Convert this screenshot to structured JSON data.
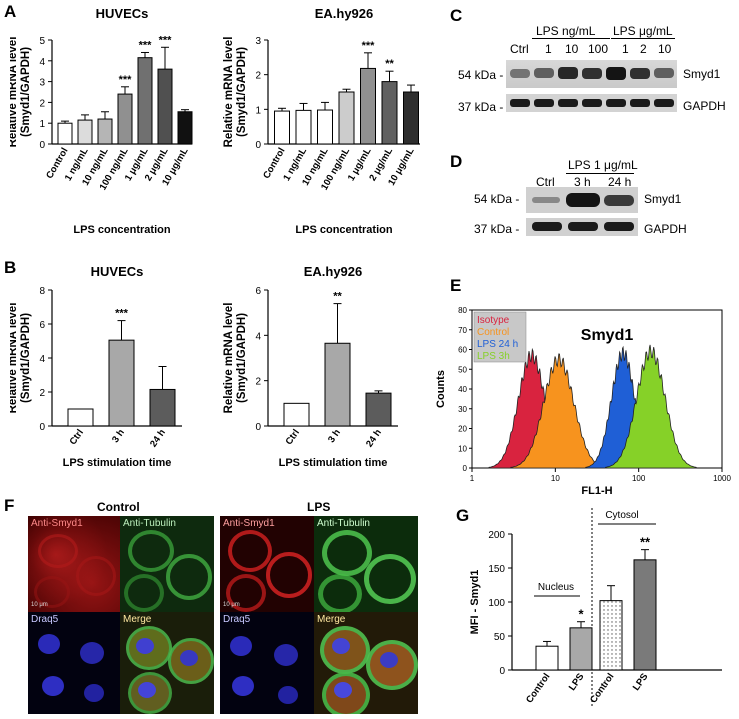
{
  "panels": {
    "A": "A",
    "B": "B",
    "C": "C",
    "D": "D",
    "E": "E",
    "F": "F",
    "G": "G"
  },
  "colors": {
    "white_bar": "#ffffff",
    "light_gray": "#c8c8c8",
    "mid_gray": "#a0a0a0",
    "dark_gray": "#707070",
    "darker_gray": "#555555",
    "black_bar": "#111111",
    "isotype": "#d9233f",
    "control": "#f7931e",
    "lps24": "#1f5fd6",
    "lps3": "#86d128"
  },
  "chart_data": [
    {
      "id": "A-huvec",
      "type": "bar",
      "title": "HUVECs",
      "ylabel": "Relative mRNA level (Smyd1/GAPDH)",
      "xlabel": "LPS concentration",
      "categories": [
        "Control",
        "1 ng/mL",
        "10 ng/mL",
        "100 ng/mL",
        "1 μg/mL",
        "2 μg/mL",
        "10 μg/mL"
      ],
      "values": [
        1.0,
        1.15,
        1.2,
        2.4,
        4.15,
        3.6,
        1.55
      ],
      "errors": [
        0.1,
        0.25,
        0.35,
        0.35,
        0.25,
        1.05,
        0.1
      ],
      "sig": [
        "",
        "",
        "",
        "***",
        "***",
        "***",
        ""
      ],
      "ylim": [
        0,
        5
      ],
      "yticks": [
        "0",
        "1",
        "2",
        "3",
        "4",
        "5"
      ],
      "fills": [
        "#ffffff",
        "#dcdcdc",
        "#b5b5b5",
        "#909090",
        "#707070",
        "#505050",
        "#111111"
      ]
    },
    {
      "id": "A-ea",
      "type": "bar",
      "title": "EA.hy926",
      "ylabel": "Relative mRNA level (Smyd1/GAPDH)",
      "xlabel": "LPS concentration",
      "categories": [
        "Control",
        "1 ng/mL",
        "10 ng/mL",
        "100 ng/mL",
        "1 μg/mL",
        "2 μg/mL",
        "10 μg/mL"
      ],
      "values": [
        0.95,
        0.97,
        0.98,
        1.5,
        2.18,
        1.8,
        1.5
      ],
      "errors": [
        0.08,
        0.2,
        0.22,
        0.08,
        0.45,
        0.3,
        0.2
      ],
      "sig": [
        "",
        "",
        "",
        "",
        "***",
        "**",
        ""
      ],
      "ylim": [
        0,
        3
      ],
      "yticks": [
        "0",
        "1",
        "2",
        "3"
      ],
      "fills": [
        "#ffffff",
        "#ffffff",
        "#ffffff",
        "#cccccc",
        "#909090",
        "#606060",
        "#2e2e2e"
      ]
    },
    {
      "id": "B-huvec",
      "type": "bar",
      "title": "HUVECs",
      "ylabel": "Relative mRNA level (Smyd1/GAPDH)",
      "xlabel": "LPS stimulation time",
      "categories": [
        "Ctrl",
        "3 h",
        "24 h"
      ],
      "values": [
        1.0,
        5.05,
        2.15
      ],
      "errors": [
        0,
        1.15,
        1.35
      ],
      "sig": [
        "",
        "***",
        ""
      ],
      "ylim": [
        0,
        8
      ],
      "yticks": [
        "0",
        "2",
        "4",
        "6",
        "8"
      ],
      "fills": [
        "#ffffff",
        "#a8a8a8",
        "#5c5c5c"
      ]
    },
    {
      "id": "B-ea",
      "type": "bar",
      "title": "EA.hy926",
      "ylabel": "Relative mRNA level (Smyd1/GAPDH)",
      "xlabel": "LPS stimulation time",
      "categories": [
        "Ctrl",
        "3 h",
        "24 h"
      ],
      "values": [
        1.0,
        3.65,
        1.45
      ],
      "errors": [
        0,
        1.75,
        0.1
      ],
      "sig": [
        "",
        "**",
        ""
      ],
      "ylim": [
        0,
        6
      ],
      "yticks": [
        "0",
        "2",
        "4",
        "6"
      ],
      "fills": [
        "#ffffff",
        "#a8a8a8",
        "#5c5c5c"
      ]
    },
    {
      "id": "E-flow",
      "type": "area",
      "title": "Smyd1",
      "ylabel": "Counts",
      "xlabel": "FL1-H",
      "xscale": "log",
      "xlim": [
        1,
        1000
      ],
      "ylim": [
        0,
        80
      ],
      "yticks": [
        "0",
        "10",
        "20",
        "30",
        "40",
        "50",
        "60",
        "70",
        "80"
      ],
      "xticks": [
        "1",
        "10",
        "100",
        "1000"
      ],
      "legend": [
        "Isotype",
        "Control",
        "LPS 24 h",
        "LPS 3h"
      ],
      "legend_colors": [
        "#d9233f",
        "#f7931e",
        "#1f5fd6",
        "#86d128"
      ],
      "series": [
        {
          "name": "Isotype",
          "peak_x": 5.2,
          "peak_y": 57,
          "width": 0.16
        },
        {
          "name": "Control",
          "peak_x": 11,
          "peak_y": 55,
          "width": 0.18
        },
        {
          "name": "LPS 24 h",
          "peak_x": 65,
          "peak_y": 58,
          "width": 0.14
        },
        {
          "name": "LPS 3h",
          "peak_x": 140,
          "peak_y": 59,
          "width": 0.17
        }
      ]
    },
    {
      "id": "G-mfi",
      "type": "bar",
      "ylabel": "MFI - Smyd1",
      "categories": [
        "Control",
        "LPS",
        "Control",
        "LPS"
      ],
      "groups": [
        "Nucleus",
        "Cytosol"
      ],
      "values": [
        35,
        62,
        102,
        162
      ],
      "errors": [
        7,
        9,
        22,
        15
      ],
      "sig": [
        "",
        "*",
        "",
        "**"
      ],
      "ylim": [
        0,
        200
      ],
      "yticks": [
        "0",
        "50",
        "100",
        "150",
        "200"
      ],
      "fills": [
        "#ffffff",
        "#a8a8a8",
        "dotted",
        "#7a7a7a"
      ]
    }
  ],
  "blot_c": {
    "header_ng": "LPS ng/mL",
    "header_ug": "LPS μg/mL",
    "lanes": [
      "Ctrl",
      "1",
      "10",
      "100",
      "1",
      "2",
      "10"
    ],
    "row1_kda": "54 kDa -",
    "row1_name": "Smyd1",
    "row2_kda": "37 kDa -",
    "row2_name": "GAPDH"
  },
  "blot_d": {
    "header": "LPS 1 μg/mL",
    "lanes": [
      "Ctrl",
      "3 h",
      "24 h"
    ],
    "row1_kda": "54 kDa -",
    "row1_name": "Smyd1",
    "row2_kda": "37 kDa -",
    "row2_name": "GAPDH"
  },
  "micro": {
    "control_title": "Control",
    "lps_title": "LPS",
    "labels": [
      "Anti-Smyd1",
      "Anti-Tubulin",
      "Draq5",
      "Merge"
    ],
    "scale": "10 μm"
  }
}
